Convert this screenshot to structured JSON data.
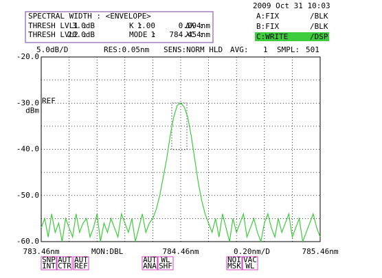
{
  "datetime": "2009 Oct 31 10:03",
  "panel": {
    "title": "SPECTRAL WIDTH : <ENVELOPE>",
    "row1": [
      "THRESH LVL1 :",
      "3.0dB",
      "K :",
      "1.00",
      "Δλ :",
      "0.094nm"
    ],
    "row2": [
      "THRESH LVL2 :",
      "20.0dB",
      "MODE :",
      "1",
      "λC :",
      "784.454nm"
    ]
  },
  "traces": [
    [
      "A:FIX",
      "/BLK"
    ],
    [
      "B:FIX",
      "/BLK"
    ],
    [
      "C:WRITE",
      "/DSP"
    ]
  ],
  "settings": [
    "5.0dB/D",
    "RES:0.05nm",
    "SENS:NORM HLD",
    "AVG:",
    "1",
    "SMPL:",
    "501"
  ],
  "softkeys": [
    [
      "SNP",
      "INT"
    ],
    [
      "AUT",
      "CTR"
    ],
    [
      "AUT",
      "REF"
    ],
    [
      "AUT",
      "ANA"
    ],
    [
      "WL",
      "SHF"
    ],
    [
      "NOI",
      "MSK"
    ],
    [
      "VAC",
      "WL"
    ]
  ],
  "chart_data": {
    "type": "line",
    "ref_label": "REF",
    "y_unit": "dBm",
    "monitor": "MON:DBL",
    "x_scale": "0.20nm/D",
    "x": [
      783.46,
      783.485,
      783.51,
      783.535,
      783.56,
      783.585,
      783.61,
      783.635,
      783.66,
      783.685,
      783.71,
      783.735,
      783.76,
      783.785,
      783.81,
      783.835,
      783.86,
      783.885,
      783.91,
      783.935,
      783.96,
      783.985,
      784.01,
      784.035,
      784.06,
      784.085,
      784.11,
      784.135,
      784.16,
      784.185,
      784.21,
      784.235,
      784.26,
      784.285,
      784.31,
      784.335,
      784.36,
      784.385,
      784.41,
      784.435,
      784.46,
      784.485,
      784.51,
      784.535,
      784.56,
      784.585,
      784.61,
      784.635,
      784.66,
      784.685,
      784.71,
      784.735,
      784.76,
      784.785,
      784.81,
      784.835,
      784.86,
      784.885,
      784.91,
      784.935,
      784.96,
      784.985,
      785.01,
      785.035,
      785.06,
      785.085,
      785.11,
      785.135,
      785.16,
      785.185,
      785.21,
      785.235,
      785.26,
      785.285,
      785.31,
      785.335,
      785.36,
      785.385,
      785.41,
      785.435,
      785.46
    ],
    "series": [
      {
        "color": "#3ccc3c",
        "values": [
          -57,
          -55,
          -59,
          -54,
          -58,
          -56,
          -60,
          -55,
          -57,
          -59,
          -54,
          -58,
          -56,
          -55,
          -59,
          -57,
          -54,
          -60,
          -56,
          -58,
          -55,
          -57,
          -59,
          -54,
          -56,
          -58,
          -55,
          -60,
          -57,
          -54,
          -58,
          -56,
          -55,
          -53,
          -50,
          -46,
          -42,
          -37,
          -33,
          -30.5,
          -30,
          -30.8,
          -33,
          -37,
          -42,
          -47,
          -51,
          -54,
          -56,
          -58,
          -55,
          -59,
          -54,
          -57,
          -60,
          -55,
          -58,
          -56,
          -54,
          -59,
          -57,
          -55,
          -58,
          -60,
          -56,
          -54,
          -57,
          -59,
          -55,
          -58,
          -56,
          -54,
          -59,
          -57,
          -55,
          -60,
          -58,
          -56,
          -54,
          -57,
          -59
        ]
      }
    ],
    "xlim": [
      783.46,
      785.46
    ],
    "xticks": [
      {
        "value": 783.46,
        "label": "783.46nm"
      },
      {
        "value": 784.46,
        "label": "784.46nm"
      },
      {
        "value": 785.46,
        "label": "785.46nm"
      }
    ],
    "xminorticks": [
      783.66,
      783.86,
      784.06,
      784.26,
      784.66,
      784.86,
      785.06,
      785.26
    ],
    "ylim": [
      -60,
      -20
    ],
    "yticks": [
      {
        "value": -20,
        "label": "-20.0"
      },
      {
        "value": -30,
        "label": "-30.0"
      },
      {
        "value": -40,
        "label": "-40.0"
      },
      {
        "value": -50,
        "label": "-50.0"
      },
      {
        "value": -60,
        "label": "-60.0"
      }
    ],
    "yminorticks": [
      -25,
      -35,
      -45,
      -55
    ],
    "grid": true
  }
}
